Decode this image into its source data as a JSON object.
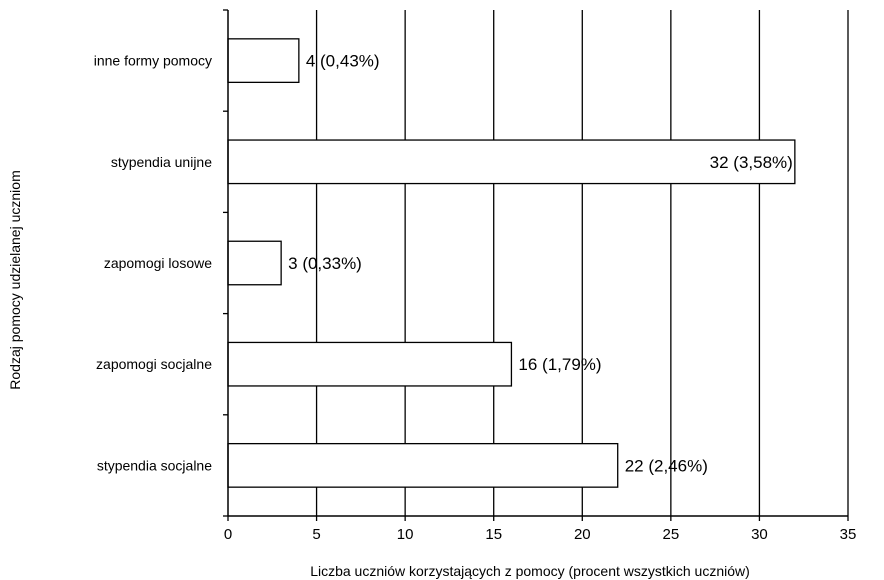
{
  "chart_data": {
    "type": "bar",
    "orientation": "horizontal",
    "categories": [
      "inne formy pomocy",
      "stypendia unijne",
      "zapomogi losowe",
      "zapomogi socjalne",
      "stypendia socjalne"
    ],
    "values": [
      4,
      32,
      3,
      16,
      22
    ],
    "data_labels": [
      "4 (0,43%)",
      "32 (3,58%)",
      "3 (0,33%)",
      "16 (1,79%)",
      "22 (2,46%)"
    ],
    "x_ticks": [
      "0",
      "5",
      "10",
      "15",
      "20",
      "25",
      "30",
      "35"
    ],
    "xlim": [
      0,
      35
    ],
    "xlabel": "Liczba uczniów korzystających z pomocy (procent wszystkich uczniów)",
    "ylabel": "Rodzaj pomocy udzielanej uczniom",
    "grid": "vertical",
    "legend": "none",
    "colors": {
      "bar_fill": "#ffffff",
      "bar_stroke": "#000000",
      "grid": "#000000"
    }
  }
}
